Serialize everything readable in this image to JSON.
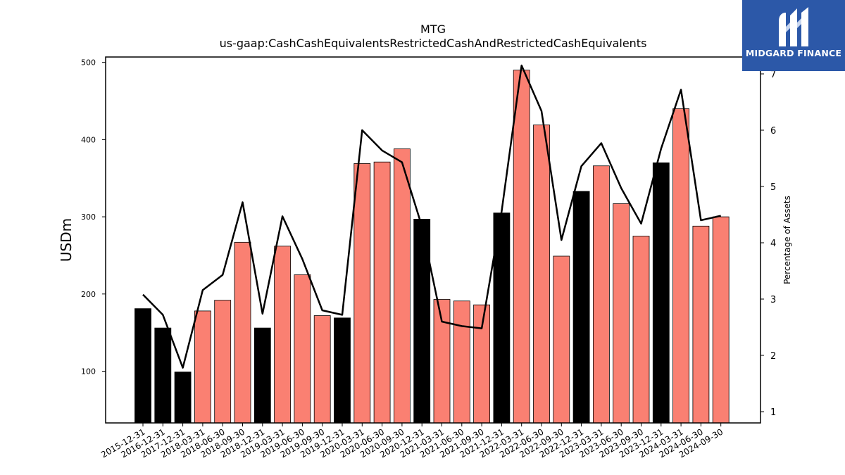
{
  "chart_data": {
    "type": "bar",
    "title": "MTG",
    "subtitle": "us-gaap:CashCashEquivalentsRestrictedCashAndRestrictedCashEquivalents",
    "ylabel": "USDm",
    "y2label": "Percentage of Assets",
    "ylim": [
      33,
      507
    ],
    "y2lim": [
      0.8,
      7.3
    ],
    "yticks": [
      100,
      200,
      300,
      400,
      500
    ],
    "y2ticks": [
      1,
      2,
      3,
      4,
      5,
      6,
      7
    ],
    "categories": [
      "2015-12-31",
      "2016-12-31",
      "2017-12-31",
      "2018-03-31",
      "2018-06-30",
      "2018-09-30",
      "2018-12-31",
      "2019-03-31",
      "2019-06-30",
      "2019-09-30",
      "2019-12-31",
      "2020-03-31",
      "2020-06-30",
      "2020-09-30",
      "2020-12-31",
      "2021-03-31",
      "2021-06-30",
      "2021-09-30",
      "2021-12-31",
      "2022-03-31",
      "2022-06-30",
      "2022-09-30",
      "2022-12-31",
      "2023-03-31",
      "2023-06-30",
      "2023-09-30",
      "2023-12-31",
      "2024-03-31",
      "2024-06-30",
      "2024-09-30"
    ],
    "series": [
      {
        "type": "bar",
        "axis": "left",
        "values": [
          181,
          156,
          99,
          178,
          192,
          267,
          156,
          262,
          225,
          172,
          169,
          369,
          371,
          388,
          297,
          193,
          191,
          186,
          305,
          490,
          419,
          249,
          333,
          366,
          317,
          275,
          370,
          440,
          288,
          300
        ],
        "colors": [
          "#000000",
          "#000000",
          "#000000",
          "#fa8072",
          "#fa8072",
          "#fa8072",
          "#000000",
          "#fa8072",
          "#fa8072",
          "#fa8072",
          "#000000",
          "#fa8072",
          "#fa8072",
          "#fa8072",
          "#000000",
          "#fa8072",
          "#fa8072",
          "#fa8072",
          "#000000",
          "#fa8072",
          "#fa8072",
          "#fa8072",
          "#000000",
          "#fa8072",
          "#fa8072",
          "#fa8072",
          "#000000",
          "#fa8072",
          "#fa8072",
          "#fa8072"
        ]
      },
      {
        "type": "line",
        "axis": "right",
        "color": "#000000",
        "values": [
          3.08,
          2.72,
          1.78,
          3.16,
          3.43,
          4.72,
          2.74,
          4.47,
          3.71,
          2.8,
          2.72,
          6.0,
          5.64,
          5.43,
          4.29,
          2.6,
          2.52,
          2.48,
          4.56,
          7.15,
          6.34,
          4.05,
          5.36,
          5.77,
          4.97,
          4.34,
          5.67,
          6.72,
          4.4,
          4.48
        ]
      }
    ],
    "grid": false,
    "legend": "none"
  },
  "brand": {
    "logo_text": "MIDGARD FINANCE",
    "logo_bg": "#2c58a8",
    "logo_icon": "midgard-m-logo-icon"
  }
}
